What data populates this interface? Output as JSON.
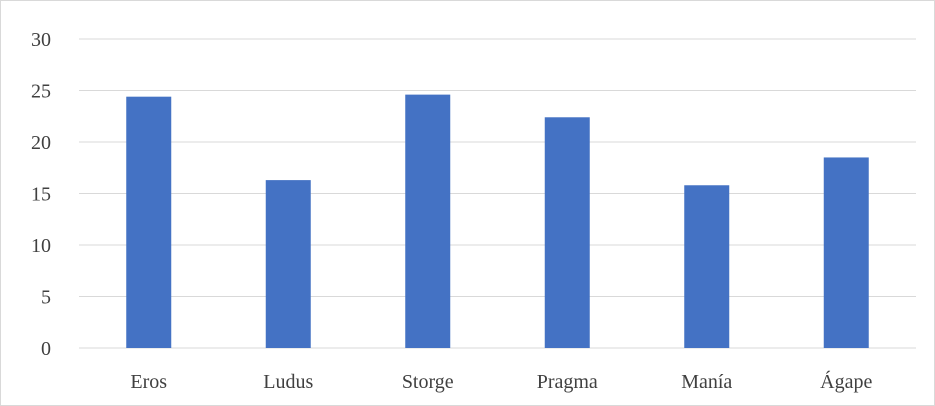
{
  "chart_data": {
    "type": "bar",
    "categories": [
      "Eros",
      "Ludus",
      "Storge",
      "Pragma",
      "Manía",
      "Ágape"
    ],
    "values": [
      24.4,
      16.3,
      24.6,
      22.4,
      15.8,
      18.5
    ],
    "title": "",
    "xlabel": "",
    "ylabel": "",
    "ylim": [
      0,
      30
    ],
    "yticks": [
      "0",
      "5",
      "10",
      "15",
      "20",
      "25",
      "30"
    ],
    "grid": true,
    "legend": "none",
    "bar_color": "#4472c4"
  }
}
